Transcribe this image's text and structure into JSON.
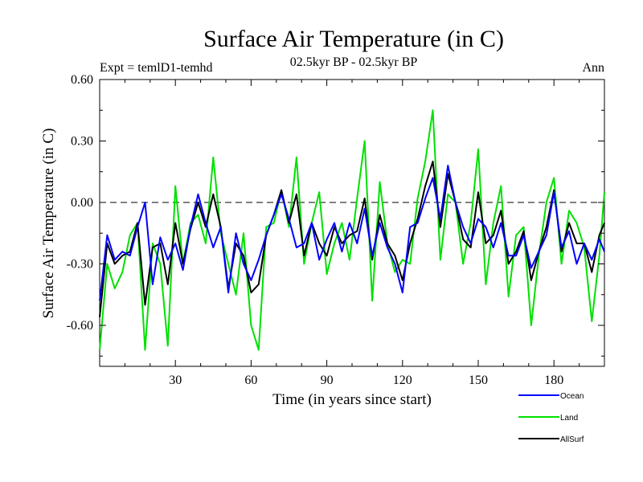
{
  "chart_data": {
    "type": "line",
    "title": "Surface Air Temperature (in C)",
    "subtitle": "02.5kyr BP - 02.5kyr BP",
    "expt_label": "Expt = temlD1-temhd",
    "season_label": "Ann",
    "xlabel": "Time (in years since start)",
    "ylabel": "Surface Air Temperature (in C)",
    "xlim": [
      0,
      200
    ],
    "ylim": [
      -0.8,
      0.6
    ],
    "x_ticks": [
      30,
      60,
      90,
      120,
      150,
      180
    ],
    "y_ticks": [
      {
        "value": 0.6,
        "label": "0.60"
      },
      {
        "value": 0.3,
        "label": "0.30"
      },
      {
        "value": 0.0,
        "label": "0.00"
      },
      {
        "value": -0.3,
        "label": "-0.30"
      },
      {
        "value": -0.6,
        "label": "-0.60"
      }
    ],
    "zero_line": true,
    "series": [
      {
        "name": "Ocean",
        "color": "#0000ff",
        "x": [
          0,
          3,
          6,
          9,
          12,
          15,
          18,
          21,
          24,
          27,
          30,
          33,
          36,
          39,
          42,
          45,
          48,
          51,
          54,
          57,
          60,
          63,
          66,
          69,
          72,
          75,
          78,
          81,
          84,
          87,
          90,
          93,
          96,
          99,
          102,
          105,
          108,
          111,
          114,
          117,
          120,
          123,
          126,
          129,
          132,
          135,
          138,
          141,
          144,
          147,
          150,
          153,
          156,
          159,
          162,
          165,
          168,
          171,
          174,
          177,
          180,
          183,
          186,
          189,
          192,
          195,
          198,
          200
        ],
        "values": [
          -0.48,
          -0.16,
          -0.28,
          -0.24,
          -0.26,
          -0.12,
          0.0,
          -0.4,
          -0.17,
          -0.28,
          -0.2,
          -0.33,
          -0.12,
          0.04,
          -0.1,
          -0.22,
          -0.12,
          -0.44,
          -0.15,
          -0.3,
          -0.38,
          -0.28,
          -0.16,
          -0.06,
          0.04,
          -0.08,
          -0.22,
          -0.2,
          -0.1,
          -0.28,
          -0.18,
          -0.1,
          -0.24,
          -0.1,
          -0.2,
          -0.03,
          -0.26,
          -0.1,
          -0.22,
          -0.3,
          -0.44,
          -0.12,
          -0.1,
          0.02,
          0.12,
          -0.08,
          0.18,
          0.0,
          -0.12,
          -0.2,
          -0.08,
          -0.12,
          -0.22,
          -0.1,
          -0.26,
          -0.26,
          -0.16,
          -0.32,
          -0.24,
          -0.16,
          0.05,
          -0.22,
          -0.14,
          -0.3,
          -0.2,
          -0.28,
          -0.18,
          -0.24
        ]
      },
      {
        "name": "Land",
        "color": "#00e000",
        "x": [
          0,
          3,
          6,
          9,
          12,
          15,
          18,
          21,
          24,
          27,
          30,
          33,
          36,
          39,
          42,
          45,
          48,
          51,
          54,
          57,
          60,
          63,
          66,
          69,
          72,
          75,
          78,
          81,
          84,
          87,
          90,
          93,
          96,
          99,
          102,
          105,
          108,
          111,
          114,
          117,
          120,
          123,
          126,
          129,
          132,
          135,
          138,
          141,
          144,
          147,
          150,
          153,
          156,
          159,
          162,
          165,
          168,
          171,
          174,
          177,
          180,
          183,
          186,
          189,
          192,
          195,
          198,
          200
        ],
        "values": [
          -0.72,
          -0.3,
          -0.42,
          -0.34,
          -0.16,
          -0.1,
          -0.72,
          -0.2,
          -0.3,
          -0.7,
          0.08,
          -0.3,
          -0.1,
          -0.06,
          -0.2,
          0.22,
          -0.15,
          -0.3,
          -0.45,
          -0.15,
          -0.6,
          -0.72,
          -0.12,
          -0.1,
          0.06,
          -0.12,
          0.22,
          -0.3,
          -0.1,
          0.05,
          -0.35,
          -0.2,
          -0.1,
          -0.28,
          0.02,
          0.3,
          -0.48,
          0.1,
          -0.2,
          -0.34,
          -0.28,
          -0.3,
          0.02,
          0.2,
          0.45,
          -0.28,
          0.04,
          0.0,
          -0.3,
          -0.1,
          0.26,
          -0.4,
          -0.1,
          0.08,
          -0.46,
          -0.16,
          -0.12,
          -0.6,
          -0.26,
          0.0,
          0.12,
          -0.3,
          -0.04,
          -0.1,
          -0.22,
          -0.58,
          -0.26,
          0.05
        ]
      },
      {
        "name": "AllSurf",
        "color": "#000000",
        "x": [
          0,
          3,
          6,
          9,
          12,
          15,
          18,
          21,
          24,
          27,
          30,
          33,
          36,
          39,
          42,
          45,
          48,
          51,
          54,
          57,
          60,
          63,
          66,
          69,
          72,
          75,
          78,
          81,
          84,
          87,
          90,
          93,
          96,
          99,
          102,
          105,
          108,
          111,
          114,
          117,
          120,
          123,
          126,
          129,
          132,
          135,
          138,
          141,
          144,
          147,
          150,
          153,
          156,
          159,
          162,
          165,
          168,
          171,
          174,
          177,
          180,
          183,
          186,
          189,
          192,
          195,
          198,
          200
        ],
        "values": [
          -0.56,
          -0.2,
          -0.3,
          -0.26,
          -0.24,
          -0.1,
          -0.5,
          -0.22,
          -0.2,
          -0.4,
          -0.1,
          -0.3,
          -0.13,
          0.0,
          -0.12,
          0.04,
          -0.12,
          -0.42,
          -0.2,
          -0.26,
          -0.44,
          -0.4,
          -0.16,
          -0.06,
          0.06,
          -0.1,
          0.04,
          -0.26,
          -0.1,
          -0.2,
          -0.26,
          -0.12,
          -0.2,
          -0.16,
          -0.14,
          0.02,
          -0.28,
          -0.06,
          -0.2,
          -0.26,
          -0.38,
          -0.2,
          -0.08,
          0.08,
          0.2,
          -0.12,
          0.14,
          0.0,
          -0.18,
          -0.22,
          0.05,
          -0.2,
          -0.16,
          -0.04,
          -0.3,
          -0.24,
          -0.14,
          -0.38,
          -0.24,
          -0.12,
          0.06,
          -0.24,
          -0.1,
          -0.2,
          -0.2,
          -0.34,
          -0.16,
          -0.1
        ]
      }
    ],
    "legend": {
      "placement": "bottom-right",
      "entries": [
        "Ocean",
        "Land",
        "AllSurf"
      ]
    }
  }
}
